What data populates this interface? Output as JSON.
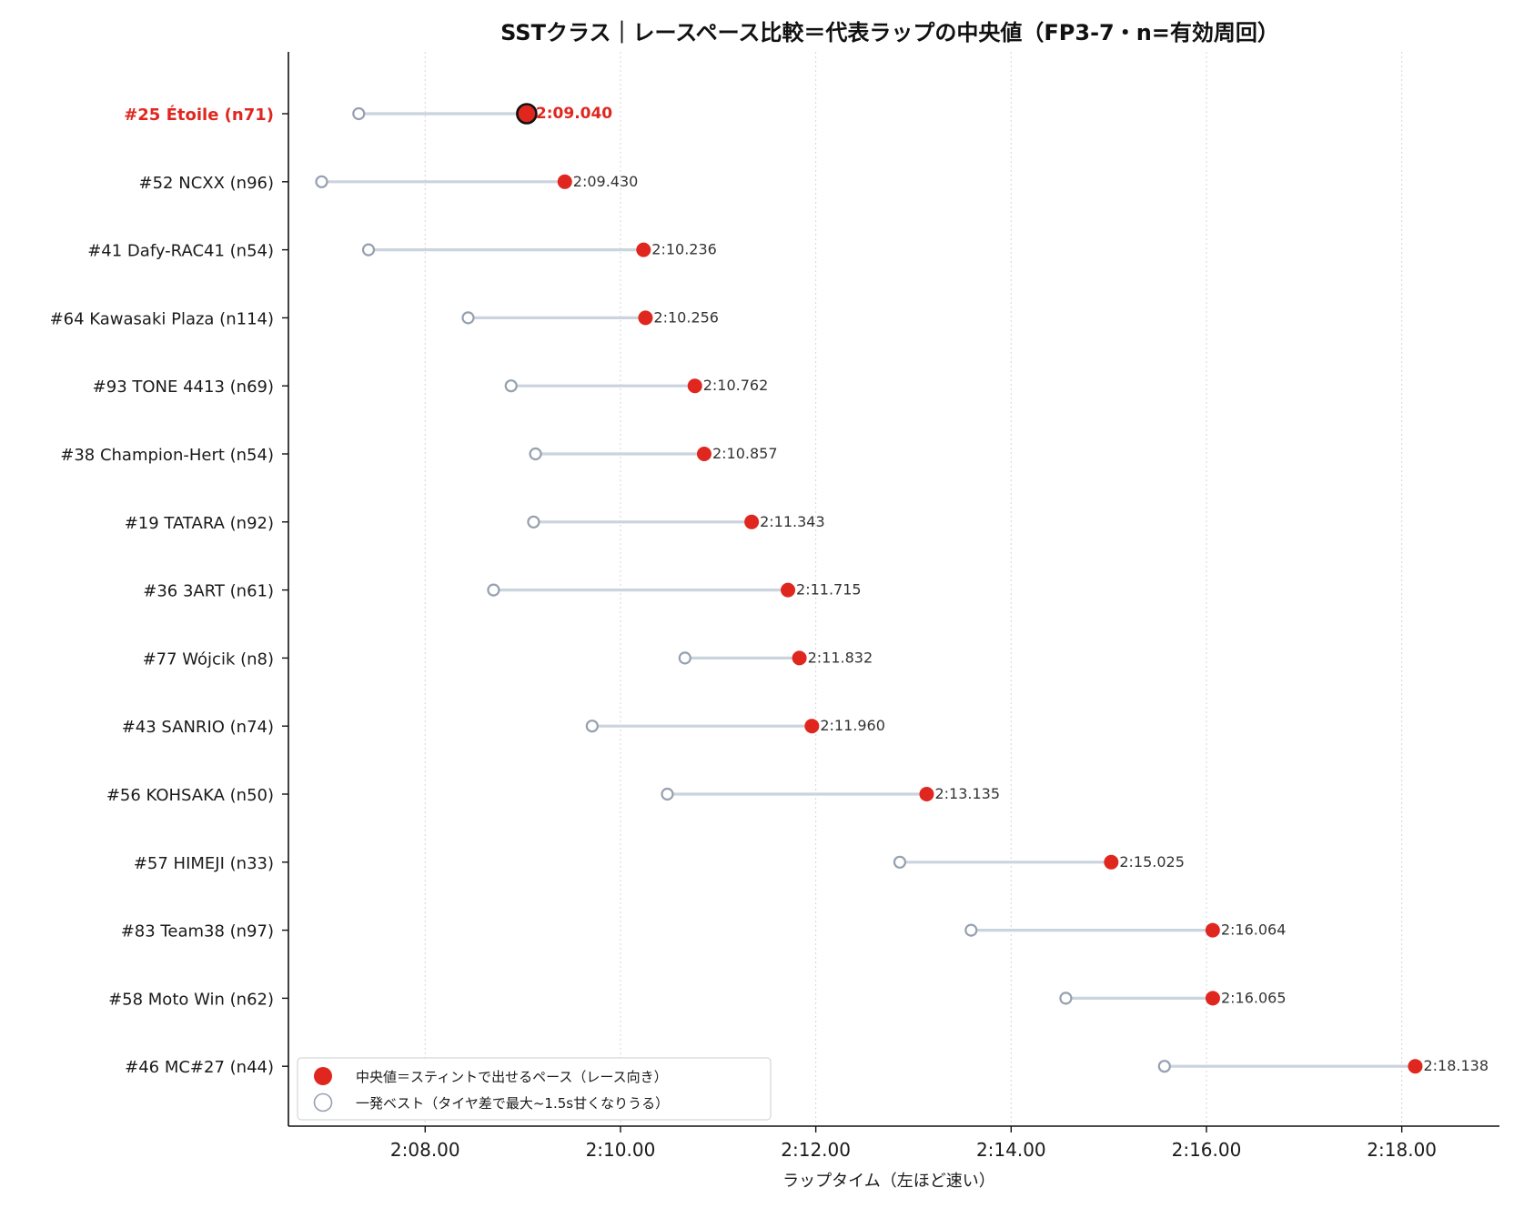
{
  "chart_data": {
    "type": "dot-range",
    "title": "SSTクラス｜レースペース比較＝代表ラップの中央値（FP3-7・n=有効周回）",
    "xlabel": "ラップタイム（左ほど速い）",
    "xlim": [
      126.6,
      139.0
    ],
    "xticks": [
      {
        "value": 128,
        "label": "2:08.00"
      },
      {
        "value": 130,
        "label": "2:10.00"
      },
      {
        "value": 132,
        "label": "2:12.00"
      },
      {
        "value": 134,
        "label": "2:14.00"
      },
      {
        "value": 136,
        "label": "2:16.00"
      },
      {
        "value": 138,
        "label": "2:18.00"
      }
    ],
    "grid": "x-dotted",
    "legend_position": "bottom-left",
    "legend": {
      "median": "中央値＝スティントで出せるペース（レース向き）",
      "best": "一発ベスト（タイヤ差で最大~1.5s甘くなりうる）"
    },
    "colors": {
      "median": "#e0271f",
      "best_stroke": "#96a0b0",
      "range_line": "#cbd3dd",
      "highlight_text": "#e0271f"
    },
    "rows": [
      {
        "label": "#25 Étoile (n71)",
        "best": 127.32,
        "median": 129.04,
        "median_label": "2:09.040",
        "highlight": true
      },
      {
        "label": "#52 NCXX (n96)",
        "best": 126.94,
        "median": 129.43,
        "median_label": "2:09.430"
      },
      {
        "label": "#41 Dafy-RAC41 (n54)",
        "best": 127.42,
        "median": 130.236,
        "median_label": "2:10.236"
      },
      {
        "label": "#64 Kawasaki Plaza (n114)",
        "best": 128.44,
        "median": 130.256,
        "median_label": "2:10.256"
      },
      {
        "label": "#93 TONE 4413 (n69)",
        "best": 128.88,
        "median": 130.762,
        "median_label": "2:10.762"
      },
      {
        "label": "#38 Champion-Hert (n54)",
        "best": 129.13,
        "median": 130.857,
        "median_label": "2:10.857"
      },
      {
        "label": "#19 TATARA (n92)",
        "best": 129.11,
        "median": 131.343,
        "median_label": "2:11.343"
      },
      {
        "label": "#36 3ART (n61)",
        "best": 128.7,
        "median": 131.715,
        "median_label": "2:11.715"
      },
      {
        "label": "#77 Wójcik (n8)",
        "best": 130.66,
        "median": 131.832,
        "median_label": "2:11.832"
      },
      {
        "label": "#43 SANRIO (n74)",
        "best": 129.71,
        "median": 131.96,
        "median_label": "2:11.960"
      },
      {
        "label": "#56 KOHSAKA (n50)",
        "best": 130.48,
        "median": 133.135,
        "median_label": "2:13.135"
      },
      {
        "label": "#57 HIMEJI (n33)",
        "best": 132.86,
        "median": 135.025,
        "median_label": "2:15.025"
      },
      {
        "label": "#83 Team38 (n97)",
        "best": 133.59,
        "median": 136.064,
        "median_label": "2:16.064"
      },
      {
        "label": "#58 Moto Win (n62)",
        "best": 134.56,
        "median": 136.065,
        "median_label": "2:16.065"
      },
      {
        "label": "#46 MC#27 (n44)",
        "best": 135.57,
        "median": 138.138,
        "median_label": "2:18.138"
      }
    ]
  }
}
